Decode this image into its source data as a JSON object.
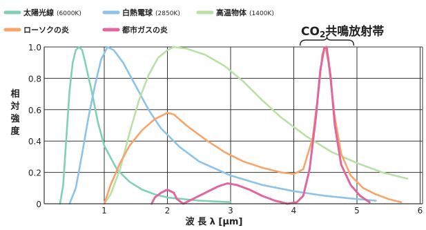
{
  "chart_data": {
    "type": "line",
    "xlabel": "波 長 λ [μm]",
    "ylabel": "相対強度",
    "xlim": [
      0,
      6
    ],
    "ylim": [
      0,
      1.0
    ],
    "x_ticks": [
      1,
      2,
      3,
      4,
      5,
      6
    ],
    "y_ticks": [
      "0",
      "0.2",
      "0.4",
      "0.6",
      "0.8",
      "1.0"
    ],
    "grid": true,
    "legend_position": "top",
    "annotation": {
      "text": "CO",
      "subscript": "2",
      "suffix": "共鳴放射帯",
      "x_range": [
        4.1,
        4.95
      ]
    },
    "series": [
      {
        "name": "太陽光線",
        "detail": "(6000K)",
        "color": "#7fd1b6",
        "points": [
          [
            0.3,
            0.0
          ],
          [
            0.35,
            0.12
          ],
          [
            0.4,
            0.42
          ],
          [
            0.45,
            0.72
          ],
          [
            0.5,
            0.9
          ],
          [
            0.55,
            0.98
          ],
          [
            0.6,
            1.0
          ],
          [
            0.65,
            0.98
          ],
          [
            0.7,
            0.9
          ],
          [
            0.8,
            0.72
          ],
          [
            0.9,
            0.52
          ],
          [
            1.0,
            0.37
          ],
          [
            1.2,
            0.22
          ],
          [
            1.4,
            0.14
          ],
          [
            1.6,
            0.09
          ],
          [
            1.8,
            0.06
          ],
          [
            2.0,
            0.04
          ],
          [
            2.5,
            0.02
          ],
          [
            3.0,
            0.01
          ]
        ]
      },
      {
        "name": "白熱電球",
        "detail": "(2850K)",
        "color": "#8cc3ea",
        "points": [
          [
            0.45,
            0.0
          ],
          [
            0.55,
            0.1
          ],
          [
            0.65,
            0.32
          ],
          [
            0.75,
            0.55
          ],
          [
            0.85,
            0.75
          ],
          [
            0.95,
            0.92
          ],
          [
            1.05,
            1.0
          ],
          [
            1.15,
            0.98
          ],
          [
            1.3,
            0.9
          ],
          [
            1.5,
            0.75
          ],
          [
            1.7,
            0.6
          ],
          [
            1.9,
            0.48
          ],
          [
            2.2,
            0.36
          ],
          [
            2.5,
            0.27
          ],
          [
            3.0,
            0.18
          ],
          [
            3.5,
            0.12
          ],
          [
            4.0,
            0.08
          ],
          [
            4.5,
            0.05
          ],
          [
            5.0,
            0.03
          ],
          [
            5.3,
            0.02
          ]
        ]
      },
      {
        "name": "高温物体",
        "detail": "(1400K)",
        "color": "#b9e0a5",
        "points": [
          [
            1.0,
            0.0
          ],
          [
            1.1,
            0.06
          ],
          [
            1.25,
            0.22
          ],
          [
            1.4,
            0.45
          ],
          [
            1.55,
            0.66
          ],
          [
            1.7,
            0.82
          ],
          [
            1.85,
            0.93
          ],
          [
            2.0,
            0.98
          ],
          [
            2.1,
            1.0
          ],
          [
            2.3,
            0.99
          ],
          [
            2.6,
            0.95
          ],
          [
            2.9,
            0.88
          ],
          [
            3.2,
            0.78
          ],
          [
            3.5,
            0.66
          ],
          [
            3.8,
            0.55
          ],
          [
            4.2,
            0.43
          ],
          [
            4.6,
            0.33
          ],
          [
            5.0,
            0.26
          ],
          [
            5.4,
            0.2
          ],
          [
            5.8,
            0.16
          ]
        ]
      },
      {
        "name": "ローソクの炎",
        "detail": "",
        "color": "#f7a36b",
        "points": [
          [
            1.0,
            0.0
          ],
          [
            1.1,
            0.12
          ],
          [
            1.25,
            0.26
          ],
          [
            1.4,
            0.37
          ],
          [
            1.6,
            0.47
          ],
          [
            1.8,
            0.54
          ],
          [
            2.0,
            0.58
          ],
          [
            2.1,
            0.57
          ],
          [
            2.3,
            0.5
          ],
          [
            2.6,
            0.41
          ],
          [
            2.9,
            0.33
          ],
          [
            3.2,
            0.27
          ],
          [
            3.5,
            0.23
          ],
          [
            3.8,
            0.2
          ],
          [
            4.0,
            0.19
          ],
          [
            4.15,
            0.22
          ],
          [
            4.3,
            0.42
          ],
          [
            4.4,
            0.75
          ],
          [
            4.45,
            0.95
          ],
          [
            4.5,
            1.0
          ],
          [
            4.55,
            0.9
          ],
          [
            4.65,
            0.55
          ],
          [
            4.75,
            0.32
          ],
          [
            4.9,
            0.18
          ],
          [
            5.1,
            0.1
          ],
          [
            5.3,
            0.06
          ],
          [
            5.5,
            0.03
          ],
          [
            5.7,
            0.01
          ]
        ]
      },
      {
        "name": "都市ガスの炎",
        "detail": "",
        "color": "#e0669e",
        "points": [
          [
            1.75,
            0.0
          ],
          [
            1.8,
            0.04
          ],
          [
            1.9,
            0.07
          ],
          [
            2.0,
            0.09
          ],
          [
            2.1,
            0.07
          ],
          [
            2.15,
            0.03
          ],
          [
            2.25,
            0.0
          ],
          [
            2.4,
            0.03
          ],
          [
            2.6,
            0.07
          ],
          [
            2.8,
            0.11
          ],
          [
            2.95,
            0.13
          ],
          [
            3.1,
            0.12
          ],
          [
            3.3,
            0.09
          ],
          [
            3.5,
            0.05
          ],
          [
            3.7,
            0.02
          ],
          [
            3.9,
            0.0
          ],
          [
            4.05,
            0.01
          ],
          [
            4.15,
            0.05
          ],
          [
            4.25,
            0.22
          ],
          [
            4.35,
            0.55
          ],
          [
            4.42,
            0.85
          ],
          [
            4.48,
            0.99
          ],
          [
            4.52,
            1.0
          ],
          [
            4.58,
            0.82
          ],
          [
            4.65,
            0.5
          ],
          [
            4.75,
            0.25
          ],
          [
            4.9,
            0.12
          ],
          [
            5.05,
            0.05
          ],
          [
            5.2,
            0.01
          ]
        ]
      }
    ]
  }
}
